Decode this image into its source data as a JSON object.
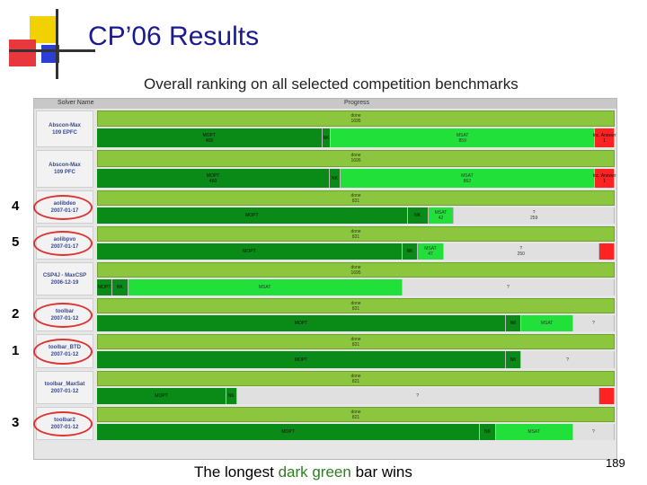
{
  "title": "CP’06 Results",
  "subtitle": "Overall ranking on all selected competition benchmarks",
  "table": {
    "header_solver": "Solver Name",
    "header_progress": "Progress",
    "rows": [
      {
        "name": "Abscon-Max",
        "date": "109 EPFC",
        "circled": false,
        "rank": "",
        "done": "done",
        "total": "1695",
        "segs": [
          {
            "label": "MOPT",
            "value": "459",
            "w": 0.435,
            "color": "#0a8a16"
          },
          {
            "label": "NK",
            "value": "",
            "w": 0.017,
            "color": "#0a8a16"
          },
          {
            "label": "MSAT",
            "value": "859",
            "w": 0.51,
            "color": "#22e03a"
          },
          {
            "label": "Inc. Answer",
            "value": "1",
            "w": 0.038,
            "color": "#ff2222"
          }
        ]
      },
      {
        "name": "Abscon-Max",
        "date": "109 PFC",
        "circled": false,
        "rank": "",
        "done": "done",
        "total": "1695",
        "segs": [
          {
            "label": "MOPT",
            "value": "460",
            "w": 0.45,
            "color": "#0a8a16"
          },
          {
            "label": "NK",
            "value": "",
            "w": 0.02,
            "color": "#0a8a16"
          },
          {
            "label": "MSAT",
            "value": "862",
            "w": 0.492,
            "color": "#22e03a"
          },
          {
            "label": "Inc. Answer",
            "value": "1",
            "w": 0.038,
            "color": "#ff2222"
          }
        ]
      },
      {
        "name": "aolibdeo",
        "date": "2007-01-17",
        "circled": true,
        "rank": "4",
        "done": "done",
        "total": "821",
        "segs": [
          {
            "label": "MOPT",
            "value": "",
            "w": 0.6,
            "color": "#0a8a16"
          },
          {
            "label": "NK",
            "value": "",
            "w": 0.04,
            "color": "#0a8a16"
          },
          {
            "label": "MSAT",
            "value": "42",
            "w": 0.05,
            "color": "#22e03a"
          },
          {
            "label": "?",
            "value": "259",
            "w": 0.31,
            "color": "#e0e0e0"
          }
        ]
      },
      {
        "name": "aolibpvo",
        "date": "2007-01-17",
        "circled": true,
        "rank": "5",
        "done": "done",
        "total": "821",
        "segs": [
          {
            "label": "MOPT",
            "value": "",
            "w": 0.59,
            "color": "#0a8a16"
          },
          {
            "label": "NK",
            "value": "",
            "w": 0.03,
            "color": "#0a8a16"
          },
          {
            "label": "MSAT",
            "value": "47",
            "w": 0.05,
            "color": "#22e03a"
          },
          {
            "label": "?",
            "value": "250",
            "w": 0.3,
            "color": "#e0e0e0"
          },
          {
            "label": "",
            "value": "",
            "w": 0.03,
            "color": "#ff2222"
          }
        ]
      },
      {
        "name": "CSP4J - MaxCSP",
        "date": "2006-12-19",
        "circled": false,
        "rank": "",
        "done": "done",
        "total": "1695",
        "segs": [
          {
            "label": "MOPT",
            "value": "",
            "w": 0.03,
            "color": "#0a8a16"
          },
          {
            "label": "NK",
            "value": "",
            "w": 0.03,
            "color": "#0a8a16"
          },
          {
            "label": "MSAT",
            "value": "",
            "w": 0.53,
            "color": "#22e03a"
          },
          {
            "label": "?",
            "value": "",
            "w": 0.41,
            "color": "#e0e0e0"
          }
        ]
      },
      {
        "name": "toolbar",
        "date": "2007-01-12",
        "circled": true,
        "rank": "2",
        "done": "done",
        "total": "821",
        "segs": [
          {
            "label": "MOPT",
            "value": "",
            "w": 0.79,
            "color": "#0a8a16"
          },
          {
            "label": "NK",
            "value": "",
            "w": 0.03,
            "color": "#0a8a16"
          },
          {
            "label": "MSAT",
            "value": "",
            "w": 0.1,
            "color": "#22e03a"
          },
          {
            "label": "?",
            "value": "",
            "w": 0.08,
            "color": "#e0e0e0"
          }
        ]
      },
      {
        "name": "toolbar_BTD",
        "date": "2007-01-12",
        "circled": true,
        "rank": "1",
        "done": "done",
        "total": "821",
        "segs": [
          {
            "label": "MOPT",
            "value": "",
            "w": 0.79,
            "color": "#0a8a16"
          },
          {
            "label": "NK",
            "value": "",
            "w": 0.03,
            "color": "#0a8a16"
          },
          {
            "label": "?",
            "value": "",
            "w": 0.18,
            "color": "#e0e0e0"
          }
        ]
      },
      {
        "name": "toolbar_MaxSat",
        "date": "2007-01-12",
        "circled": false,
        "rank": "",
        "done": "done",
        "total": "821",
        "segs": [
          {
            "label": "MOPT",
            "value": "",
            "w": 0.25,
            "color": "#0a8a16"
          },
          {
            "label": "NK",
            "value": "",
            "w": 0.02,
            "color": "#0a8a16"
          },
          {
            "label": "?",
            "value": "",
            "w": 0.7,
            "color": "#e0e0e0"
          },
          {
            "label": "",
            "value": "",
            "w": 0.03,
            "color": "#ff2222"
          }
        ]
      },
      {
        "name": "toolbar2",
        "date": "2007-01-12",
        "circled": true,
        "rank": "3",
        "done": "done",
        "total": "821",
        "segs": [
          {
            "label": "MOPT",
            "value": "",
            "w": 0.74,
            "color": "#0a8a16"
          },
          {
            "label": "NK",
            "value": "",
            "w": 0.03,
            "color": "#0a8a16"
          },
          {
            "label": "MSAT",
            "value": "",
            "w": 0.15,
            "color": "#22e03a"
          },
          {
            "label": "?",
            "value": "",
            "w": 0.08,
            "color": "#e0e0e0"
          }
        ]
      }
    ]
  },
  "footer": {
    "pre": "The longest ",
    "highlight": "dark green",
    "post": " bar wins"
  },
  "page_number": "189"
}
